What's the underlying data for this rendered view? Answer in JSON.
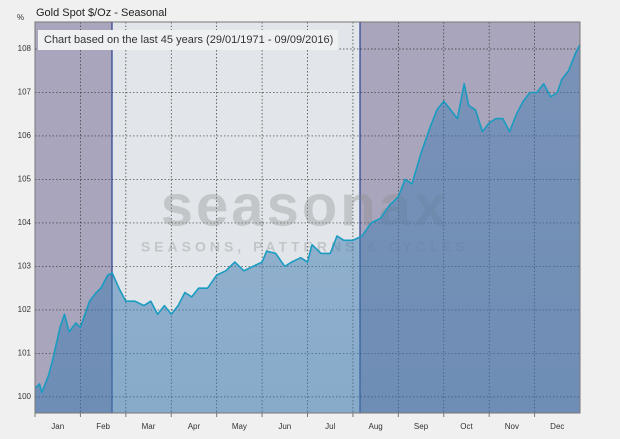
{
  "chart_data": {
    "type": "line",
    "title": "Gold Spot   $/Oz - Seasonal",
    "subtitle": "Chart based on the last 45 years (29/01/1971 - 09/09/2016)",
    "y_label": "%",
    "watermark": "seasonax",
    "watermark_tagline": "SEASONS, PATTERNS & CYCLES",
    "categories": [
      "Jan",
      "Feb",
      "Mar",
      "Apr",
      "May",
      "Jun",
      "Jul",
      "Aug",
      "Sep",
      "Oct",
      "Nov",
      "Dec"
    ],
    "xlim": [
      0,
      12
    ],
    "ylim": [
      99.63,
      108.62
    ],
    "yticks": [
      100,
      101,
      102,
      103,
      104,
      105,
      106,
      107,
      108
    ],
    "grid": true,
    "series": [
      {
        "name": "Gold Spot",
        "color": "#1a9bc0",
        "x": [
          0,
          0.1,
          0.15,
          0.3,
          0.4,
          0.55,
          0.65,
          0.75,
          0.9,
          1.0,
          1.1,
          1.2,
          1.35,
          1.45,
          1.6,
          1.7,
          1.85,
          2.0,
          2.2,
          2.4,
          2.55,
          2.7,
          2.85,
          3.0,
          3.15,
          3.3,
          3.45,
          3.6,
          3.8,
          4.0,
          4.2,
          4.4,
          4.6,
          4.8,
          5.0,
          5.1,
          5.3,
          5.5,
          5.65,
          5.85,
          6.0,
          6.1,
          6.3,
          6.5,
          6.65,
          6.8,
          7.0,
          7.2,
          7.4,
          7.6,
          7.8,
          8.0,
          8.15,
          8.3,
          8.5,
          8.7,
          8.85,
          9.0,
          9.15,
          9.3,
          9.45,
          9.55,
          9.7,
          9.85,
          10.0,
          10.15,
          10.3,
          10.45,
          10.6,
          10.75,
          10.9,
          11.05,
          11.2,
          11.35,
          11.5,
          11.6,
          11.75,
          11.9,
          12.0
        ],
        "values": [
          100.2,
          100.3,
          100.1,
          100.5,
          100.9,
          101.6,
          101.9,
          101.5,
          101.7,
          101.6,
          101.9,
          102.2,
          102.4,
          102.5,
          102.8,
          102.85,
          102.5,
          102.2,
          102.2,
          102.1,
          102.2,
          101.9,
          102.1,
          101.9,
          102.1,
          102.4,
          102.3,
          102.5,
          102.5,
          102.8,
          102.9,
          103.1,
          102.9,
          103.0,
          103.1,
          103.35,
          103.3,
          103.0,
          103.1,
          103.2,
          103.1,
          103.5,
          103.3,
          103.3,
          103.7,
          103.6,
          103.6,
          103.7,
          104.0,
          104.1,
          104.4,
          104.6,
          105.0,
          104.9,
          105.6,
          106.2,
          106.6,
          106.8,
          106.6,
          106.4,
          107.2,
          106.7,
          106.6,
          106.1,
          106.3,
          106.4,
          106.4,
          106.1,
          106.5,
          106.8,
          107.0,
          107.0,
          107.2,
          106.9,
          107.0,
          107.3,
          107.5,
          107.9,
          108.1
        ]
      }
    ]
  }
}
